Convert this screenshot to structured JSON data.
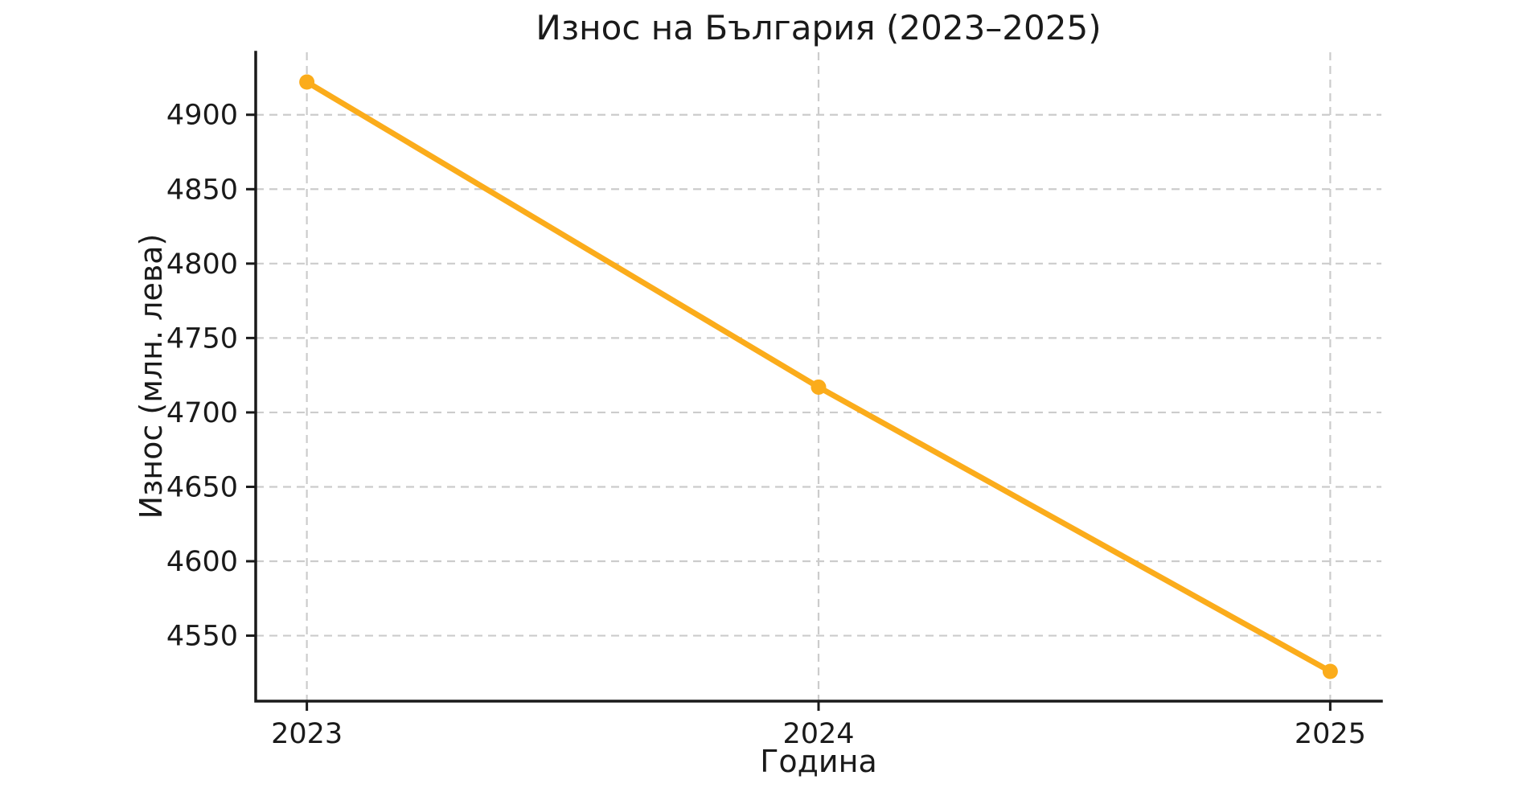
{
  "chart_data": {
    "type": "line",
    "title": "Износ на България (2023–2025)",
    "xlabel": "Година",
    "ylabel": "Износ (млн. лева)",
    "x": [
      2023,
      2024,
      2025
    ],
    "series": [
      {
        "name": "Износ",
        "values": [
          4922,
          4717,
          4526
        ]
      }
    ],
    "xticks": [
      2023,
      2024,
      2025
    ],
    "xtick_labels": [
      "2023",
      "2024",
      "2025"
    ],
    "yticks": [
      4550,
      4600,
      4650,
      4700,
      4750,
      4800,
      4850,
      4900
    ],
    "ytick_labels": [
      "4550",
      "4600",
      "4650",
      "4700",
      "4750",
      "4800",
      "4850",
      "4900"
    ],
    "xlim": [
      2022.9,
      2025.1
    ],
    "ylim": [
      4506,
      4942
    ],
    "grid": true,
    "grid_style": "dashed",
    "legend": false,
    "colors": {
      "line": "#FBAC1B",
      "marker": "#FBAC1B",
      "grid": "#cccccc",
      "spine": "#1a1a1a",
      "text": "#1a1a1a",
      "background": "#ffffff"
    }
  }
}
